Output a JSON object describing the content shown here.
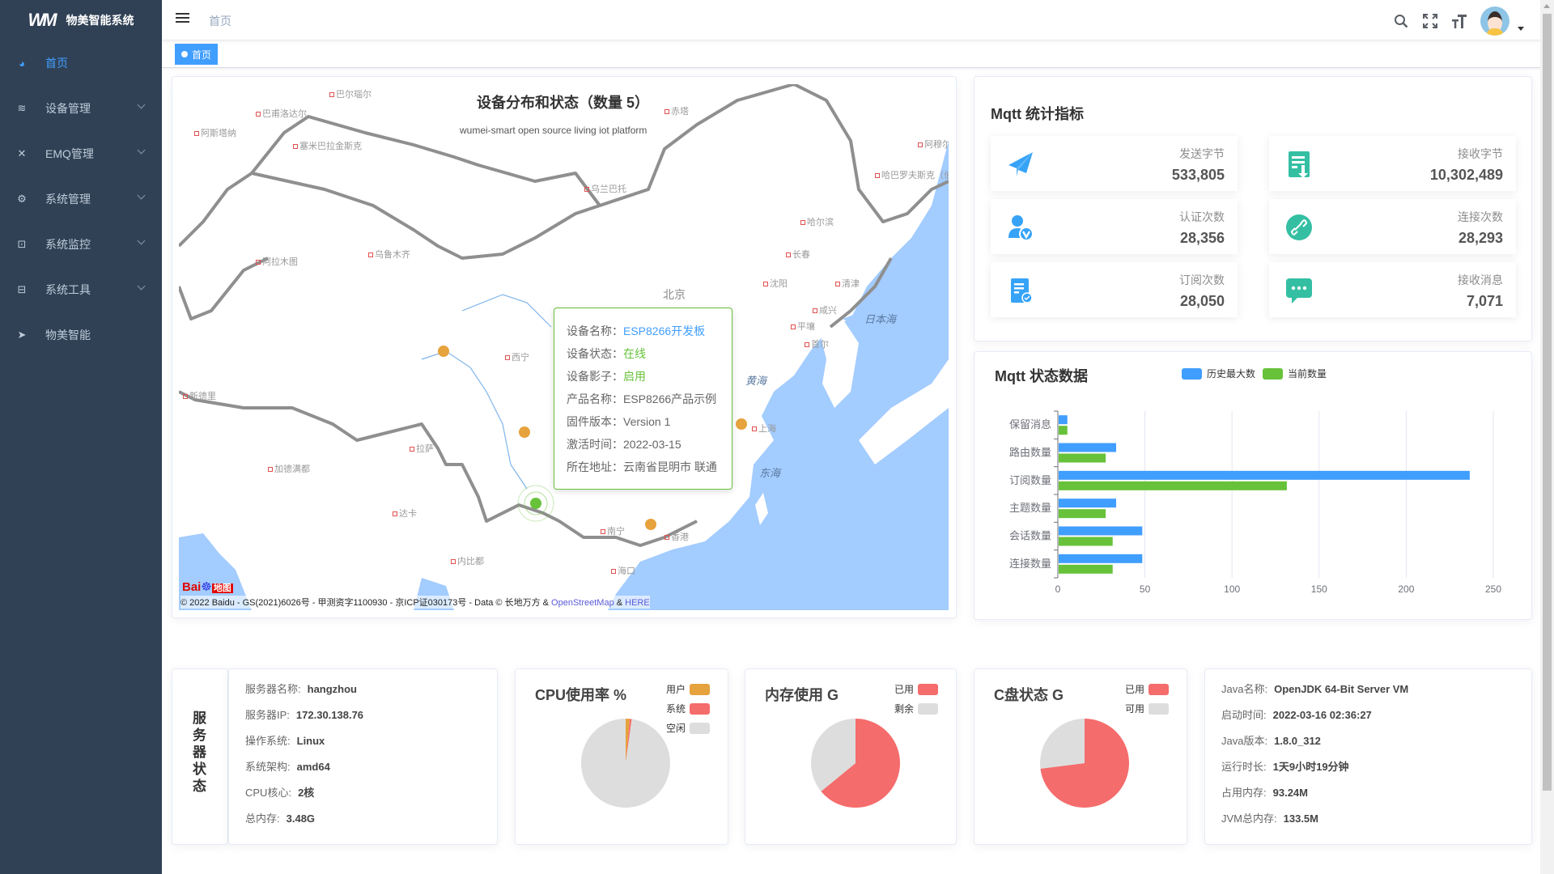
{
  "app": {
    "title": "物美智能系统",
    "logo": "WM"
  },
  "sidebar": {
    "items": [
      {
        "label": "首页",
        "icon": "dashboard-icon",
        "active": true
      },
      {
        "label": "设备管理",
        "icon": "devices-icon",
        "expandable": true
      },
      {
        "label": "EMQ管理",
        "icon": "nodes-icon",
        "expandable": true
      },
      {
        "label": "系统管理",
        "icon": "gear-icon",
        "expandable": true
      },
      {
        "label": "系统监控",
        "icon": "monitor-icon",
        "expandable": true
      },
      {
        "label": "系统工具",
        "icon": "toolbox-icon",
        "expandable": true
      },
      {
        "label": "物美智能",
        "icon": "paper-plane-icon"
      }
    ]
  },
  "navbar": {
    "breadcrumb": "首页",
    "icons": [
      "search-icon",
      "fullscreen-icon",
      "font-size-icon"
    ]
  },
  "tags": {
    "items": [
      {
        "label": "首页",
        "active": true
      }
    ]
  },
  "map": {
    "title": "设备分布和状态（数量 5）",
    "subtitle": "wumei-smart open source living iot platform",
    "cities": [
      "巴尔瑙尔",
      "巴甫洛达尔",
      "阿斯塔纳",
      "塞米巴拉金斯克",
      "乌兰巴托",
      "赤塔",
      "阿穆尔",
      "哈巴罗夫斯克（伯力）",
      "哈尔滨",
      "长春",
      "沈阳",
      "清津",
      "北京",
      "咸兴",
      "平壤",
      "首尔",
      "日本海",
      "黄海",
      "东海",
      "西宁",
      "阿拉木图",
      "乌鲁木齐",
      "拉萨",
      "上海",
      "香港",
      "南宁",
      "海口",
      "加德满都",
      "达卡",
      "内比都",
      "新德里"
    ],
    "tooltip": {
      "rows": [
        {
          "label": "设备名称：",
          "value": "ESP8266开发板",
          "color": "#409eff"
        },
        {
          "label": "设备状态：",
          "value": "在线",
          "color": "#67c23a"
        },
        {
          "label": "设备影子：",
          "value": "启用",
          "color": "#67c23a"
        },
        {
          "label": "产品名称：",
          "value": "ESP8266产品示例"
        },
        {
          "label": "固件版本：",
          "value": "Version 1"
        },
        {
          "label": "激活时间：",
          "value": "2022-03-15"
        },
        {
          "label": "所在地址：",
          "value": "云南省昆明市 联通"
        }
      ]
    },
    "baidu_logo": "Bai du 地图",
    "attribution": "© 2022 Baidu - GS(2021)6026号 - 甲测资字1100930 - 京ICP证030173号 - Data © 长地万方 & ",
    "attribution_links": [
      "OpenStreetMap",
      "HERE"
    ],
    "attribution_sep": " & ",
    "colors": {
      "ocean": "#a3ccff",
      "border": "#8f8f8f",
      "online": "#67c23a",
      "offline": "#e6a23c"
    }
  },
  "mqtt_stats": {
    "title": "Mqtt 统计指标",
    "items": [
      {
        "label": "发送字节",
        "value": "533,805",
        "icon": "paper-plane-icon",
        "color": "#36a3f7"
      },
      {
        "label": "接收字节",
        "value": "10,302,489",
        "icon": "document-download-icon",
        "color": "#34bfa3"
      },
      {
        "label": "认证次数",
        "value": "28,356",
        "icon": "user-verified-icon",
        "color": "#36a3f7"
      },
      {
        "label": "连接次数",
        "value": "28,293",
        "icon": "link-icon",
        "color": "#34bfa3"
      },
      {
        "label": "订阅次数",
        "value": "28,050",
        "icon": "document-check-icon",
        "color": "#36a3f7"
      },
      {
        "label": "接收消息",
        "value": "7,071",
        "icon": "chat-icon",
        "color": "#34bfa3"
      }
    ]
  },
  "mqtt_state": {
    "title": "Mqtt 状态数据"
  },
  "chart_data": [
    {
      "type": "bar",
      "orientation": "horizontal",
      "categories": [
        "保留消息",
        "路由数量",
        "订阅数量",
        "主题数量",
        "会话数量",
        "连接数量"
      ],
      "series": [
        {
          "name": "历史最大数",
          "color": "#409eff",
          "values": [
            5,
            33,
            236,
            33,
            48,
            48
          ]
        },
        {
          "name": "当前数量",
          "color": "#67c23a",
          "values": [
            5,
            27,
            131,
            27,
            31,
            31
          ]
        }
      ],
      "xlim": [
        0,
        250
      ],
      "xticks": [
        0,
        50,
        100,
        150,
        200,
        250
      ],
      "grid": true,
      "legend": "top"
    },
    {
      "type": "pie",
      "title": "CPU使用率 %",
      "categories": [
        "用户",
        "系统",
        "空闲"
      ],
      "values": [
        1.5,
        0.7,
        97.8
      ],
      "colors": [
        "#e6a23c",
        "#f56c6c",
        "#dddddd"
      ]
    },
    {
      "type": "pie",
      "title": "内存使用 G",
      "categories": [
        "已用",
        "剩余"
      ],
      "values": [
        2.23,
        1.25
      ],
      "colors": [
        "#f56c6c",
        "#dddddd"
      ]
    },
    {
      "type": "pie",
      "title": "C盘状态 G",
      "categories": [
        "已用",
        "可用"
      ],
      "values": [
        73,
        27
      ],
      "colors": [
        "#f56c6c",
        "#dddddd"
      ]
    }
  ],
  "server": {
    "heading": "服务器状态",
    "rows": [
      {
        "label": "服务器名称:",
        "value": "hangzhou"
      },
      {
        "label": "服务器IP:",
        "value": "172.30.138.76"
      },
      {
        "label": "操作系统:",
        "value": "Linux"
      },
      {
        "label": "系统架构:",
        "value": "amd64"
      },
      {
        "label": "CPU核心:",
        "value": "2核"
      },
      {
        "label": "总内存:",
        "value": "3.48G"
      }
    ]
  },
  "jvm": {
    "rows": [
      {
        "label": "Java名称:",
        "value": "OpenJDK 64-Bit Server VM"
      },
      {
        "label": "启动时间:",
        "value": "2022-03-16 02:36:27"
      },
      {
        "label": "Java版本:",
        "value": "1.8.0_312"
      },
      {
        "label": "运行时长:",
        "value": "1天9小时19分钟"
      },
      {
        "label": "占用内存:",
        "value": "93.24M"
      },
      {
        "label": "JVM总内存:",
        "value": "133.5M"
      }
    ]
  }
}
